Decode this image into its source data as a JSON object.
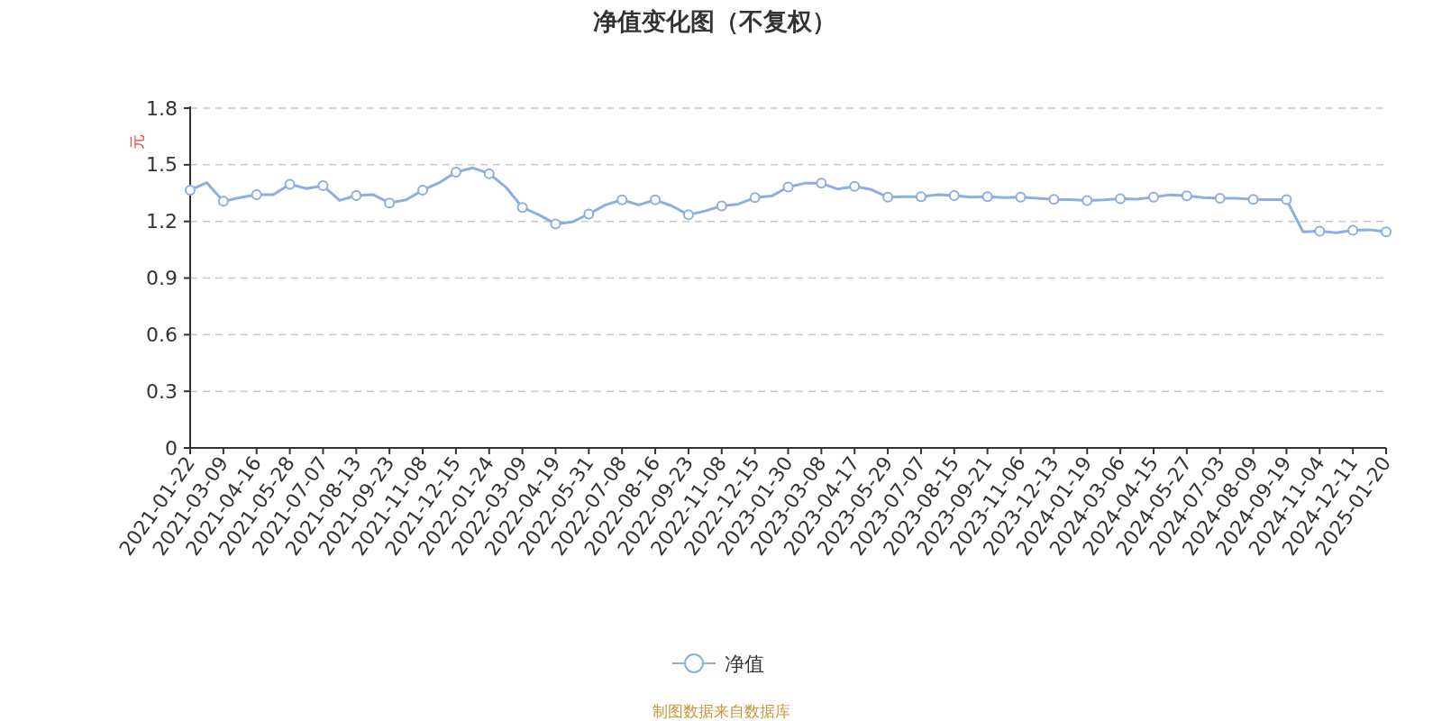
{
  "chart_data": {
    "type": "line",
    "title": "净值变化图（不复权）",
    "ylabel": "元",
    "categories": [
      "2021-01-22",
      null,
      "2021-03-09",
      null,
      "2021-04-16",
      null,
      "2021-05-28",
      null,
      "2021-07-07",
      null,
      "2021-08-13",
      null,
      "2021-09-23",
      null,
      "2021-11-08",
      null,
      "2021-12-15",
      null,
      "2022-01-24",
      null,
      "2022-03-09",
      null,
      "2022-04-19",
      null,
      "2022-05-31",
      null,
      "2022-07-08",
      null,
      "2022-08-16",
      null,
      "2022-09-23",
      null,
      "2022-11-08",
      null,
      "2022-12-15",
      null,
      "2023-01-30",
      null,
      "2023-03-08",
      null,
      "2023-04-17",
      null,
      "2023-05-29",
      null,
      "2023-07-07",
      null,
      "2023-08-15",
      null,
      "2023-09-21",
      null,
      "2023-11-06",
      null,
      "2023-12-13",
      null,
      "2024-01-19",
      null,
      "2024-03-06",
      null,
      "2024-04-15",
      null,
      "2024-05-27",
      null,
      "2024-07-03",
      null,
      "2024-08-09",
      null,
      "2024-09-19",
      null,
      "2024-11-04",
      null,
      "2024-12-11",
      null,
      "2025-01-20"
    ],
    "series": [
      {
        "name": "净值",
        "color": "#8caee0",
        "values": [
          1.366,
          1.405,
          1.307,
          1.326,
          1.342,
          1.342,
          1.397,
          1.374,
          1.389,
          1.311,
          1.337,
          1.342,
          1.298,
          1.314,
          1.366,
          1.405,
          1.461,
          1.484,
          1.453,
          1.382,
          1.274,
          1.235,
          1.187,
          1.197,
          1.239,
          1.287,
          1.314,
          1.287,
          1.314,
          1.282,
          1.235,
          1.255,
          1.282,
          1.292,
          1.326,
          1.334,
          1.382,
          1.402,
          1.402,
          1.371,
          1.386,
          1.369,
          1.329,
          1.331,
          1.331,
          1.342,
          1.337,
          1.329,
          1.331,
          1.326,
          1.328,
          1.322,
          1.317,
          1.315,
          1.311,
          1.314,
          1.32,
          1.318,
          1.329,
          1.341,
          1.336,
          1.326,
          1.323,
          1.323,
          1.317,
          1.315,
          1.315,
          1.145,
          1.148,
          1.14,
          1.153,
          1.156,
          1.145
        ]
      }
    ],
    "ylim": [
      0,
      1.8
    ],
    "yticks": [
      0,
      0.3,
      0.6,
      0.9,
      1.2,
      1.5,
      1.8
    ],
    "grid": "y",
    "legend": "bottom",
    "marker": "circle",
    "line_style": "solid",
    "annotations": [
      "制图数据来自数据库"
    ]
  }
}
